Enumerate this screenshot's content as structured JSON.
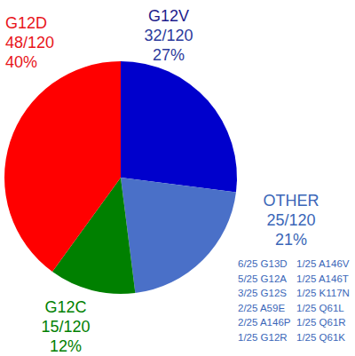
{
  "chart_data": {
    "type": "pie",
    "categories": [
      "G12V",
      "OTHER",
      "G12C",
      "G12D"
    ],
    "values": [
      27,
      21,
      12,
      40
    ],
    "value_labels": [
      "27%",
      "21%",
      "12%",
      "40%"
    ],
    "count_labels": [
      "32/120",
      "25/120",
      "15/120",
      "48/120"
    ],
    "colors": [
      "#0000cc",
      "#4a70c8",
      "#008000",
      "#ff0000"
    ],
    "data_labels": true,
    "other_breakdown": [
      "6/25 G13D",
      "5/25 G12A",
      "3/25 G12S",
      "2/25 A59E",
      "2/25 A146P",
      "1/25 G12R",
      "1/25 A146V",
      "1/25 A146T",
      "1/25 K117N",
      "1/25 Q61L",
      "1/25 Q61R",
      "1/25 Q61K"
    ]
  }
}
